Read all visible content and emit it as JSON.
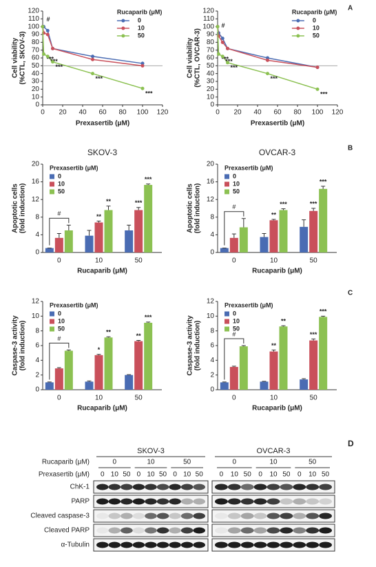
{
  "chart_data": [
    {
      "type": "line",
      "panel_label": "A",
      "ylabel": [
        "Cell viability",
        "(%CTL, SKOV-3)"
      ],
      "xlabel": "Prexasertib (μM)",
      "legend_title": "Rucaparib (μM)",
      "x": [
        0,
        1,
        5,
        10,
        50,
        100
      ],
      "xlim": [
        0,
        120
      ],
      "xticks": [
        0,
        20,
        40,
        60,
        80,
        100,
        120
      ],
      "ylim": [
        0,
        120
      ],
      "yticks": [
        0,
        10,
        20,
        30,
        40,
        50,
        60,
        70,
        80,
        90,
        100,
        110,
        120
      ],
      "reference_line": 50,
      "series": [
        {
          "name": "0",
          "color": "#4a6cb3",
          "values": [
            100,
            100,
            95,
            72,
            62,
            53
          ],
          "annotations": [
            null,
            "#",
            null,
            null,
            null,
            null
          ]
        },
        {
          "name": "10",
          "color": "#c9505b",
          "values": [
            100,
            92,
            90,
            72,
            58,
            50
          ]
        },
        {
          "name": "50",
          "color": "#8cc152",
          "values": [
            100,
            65,
            62,
            55,
            40,
            21
          ],
          "annotations": [
            null,
            "***",
            "***",
            "***",
            "***",
            "***"
          ]
        }
      ]
    },
    {
      "type": "line",
      "ylabel": [
        "Cell viability",
        "(%CTL, OVCAR-3)"
      ],
      "xlabel": "Prexasertib (μM)",
      "legend_title": "Rucaparib (μM)",
      "x": [
        0,
        1,
        5,
        10,
        50,
        100
      ],
      "xlim": [
        0,
        120
      ],
      "xticks": [
        0,
        20,
        40,
        60,
        80,
        100,
        120
      ],
      "ylim": [
        0,
        120
      ],
      "yticks": [
        0,
        10,
        20,
        30,
        40,
        50,
        60,
        70,
        80,
        90,
        100,
        110,
        120
      ],
      "reference_line": 50,
      "series": [
        {
          "name": "0",
          "color": "#4a6cb3",
          "values": [
            100,
            92,
            85,
            72,
            60,
            48
          ],
          "annotations": [
            null,
            "#",
            null,
            null,
            null,
            null
          ]
        },
        {
          "name": "10",
          "color": "#c9505b",
          "values": [
            100,
            88,
            80,
            72,
            57,
            48
          ]
        },
        {
          "name": "50",
          "color": "#8cc152",
          "values": [
            100,
            65,
            62,
            54,
            40,
            20
          ],
          "annotations": [
            null,
            "***",
            "***",
            "***",
            "***",
            "***"
          ]
        }
      ]
    },
    {
      "type": "bar",
      "panel_label": "B",
      "title": "SKOV-3",
      "ylabel": [
        "Apoptotic cells",
        "(fold induction)"
      ],
      "xlabel": "Rucaparib (μM)",
      "legend_title": "Prexasertib (μM)",
      "categories": [
        "0",
        "10",
        "50"
      ],
      "ylim": [
        0,
        20
      ],
      "yticks": [
        0,
        4,
        8,
        12,
        16,
        20
      ],
      "series": [
        {
          "name": "0",
          "color": "#4a6cb3",
          "values": [
            1,
            3.8,
            5
          ],
          "errors": [
            0,
            1.2,
            1.2
          ]
        },
        {
          "name": "10",
          "color": "#c9505b",
          "values": [
            3.3,
            6.8,
            9.6
          ],
          "errors": [
            1,
            0.3,
            0.6
          ],
          "annotations": [
            null,
            "**",
            "***"
          ]
        },
        {
          "name": "50",
          "color": "#8cc152",
          "values": [
            5,
            9.6,
            15.3
          ],
          "errors": [
            1.2,
            0.9,
            0.2
          ],
          "annotations": [
            "#",
            "**",
            "***"
          ]
        }
      ]
    },
    {
      "type": "bar",
      "title": "OVCAR-3",
      "ylabel": [
        "Apoptotic cells",
        "(fold induction)"
      ],
      "xlabel": "Rucaparib (μM)",
      "legend_title": "Prexasertib (μM)",
      "categories": [
        "0",
        "10",
        "50"
      ],
      "ylim": [
        0,
        20
      ],
      "yticks": [
        0,
        4,
        8,
        12,
        16,
        20
      ],
      "series": [
        {
          "name": "0",
          "color": "#4a6cb3",
          "values": [
            1,
            3.5,
            5.8
          ],
          "errors": [
            0,
            0.8,
            1.6
          ]
        },
        {
          "name": "10",
          "color": "#c9505b",
          "values": [
            3.3,
            7.3,
            9.4
          ],
          "errors": [
            0.9,
            0.2,
            0.6
          ],
          "annotations": [
            null,
            "**",
            "***"
          ]
        },
        {
          "name": "50",
          "color": "#8cc152",
          "values": [
            5.7,
            9.6,
            14.4
          ],
          "errors": [
            2,
            0.3,
            0.6
          ],
          "annotations": [
            "#",
            "***",
            "***"
          ]
        }
      ]
    },
    {
      "type": "bar",
      "panel_label": "C",
      "ylabel": [
        "Caspase-3 activity",
        "(fold induction)"
      ],
      "xlabel": "Rucaparib (μM)",
      "legend_title": "Prexasertib (μM)",
      "categories": [
        "0",
        "10",
        "50"
      ],
      "ylim": [
        0,
        12
      ],
      "yticks": [
        0,
        2,
        4,
        6,
        8,
        10,
        12
      ],
      "series": [
        {
          "name": "0",
          "color": "#4a6cb3",
          "values": [
            1,
            1.1,
            2
          ],
          "errors": [
            0.05,
            0.1,
            0.05
          ]
        },
        {
          "name": "10",
          "color": "#c9505b",
          "values": [
            2.9,
            4.7,
            6.6
          ],
          "errors": [
            0.1,
            0.1,
            0.1
          ],
          "annotations": [
            null,
            "*",
            "**"
          ]
        },
        {
          "name": "50",
          "color": "#8cc152",
          "values": [
            5.3,
            7.1,
            9.1
          ],
          "errors": [
            0.1,
            0.1,
            0.1
          ],
          "annotations": [
            "#",
            "**",
            "***"
          ]
        }
      ]
    },
    {
      "type": "bar",
      "ylabel": [
        "Caspase-3 activity",
        "(fold induction)"
      ],
      "xlabel": "Rucaparib (μM)",
      "legend_title": "Prexasertib (μM)",
      "categories": [
        "0",
        "10",
        "50"
      ],
      "ylim": [
        0,
        12
      ],
      "yticks": [
        0,
        2,
        4,
        6,
        8,
        10,
        12
      ],
      "series": [
        {
          "name": "0",
          "color": "#4a6cb3",
          "values": [
            1,
            1.1,
            1.4
          ],
          "errors": [
            0.05,
            0.05,
            0.1
          ]
        },
        {
          "name": "10",
          "color": "#c9505b",
          "values": [
            3.1,
            5.2,
            6.7
          ],
          "errors": [
            0.1,
            0.2,
            0.2
          ],
          "annotations": [
            null,
            "**",
            "***"
          ]
        },
        {
          "name": "50",
          "color": "#8cc152",
          "values": [
            5.9,
            8.6,
            9.9
          ],
          "errors": [
            0.1,
            0.1,
            0.1
          ],
          "annotations": [
            "#",
            "**",
            "***"
          ]
        }
      ]
    }
  ],
  "blot": {
    "panel_label": "D",
    "cell_lines": [
      "SKOV-3",
      "OVCAR-3"
    ],
    "rucaparib_label": "Rucaparib (μM)",
    "rucaparib": [
      "0",
      "10",
      "50"
    ],
    "prexasertib_label": "Prexasertib (μM)",
    "prexasertib": [
      "0",
      "10",
      "50"
    ],
    "proteins": [
      "ChK-1",
      "PARP",
      "Cleaved caspase-3",
      "Cleaved PARP",
      "α-Tubulin"
    ]
  }
}
